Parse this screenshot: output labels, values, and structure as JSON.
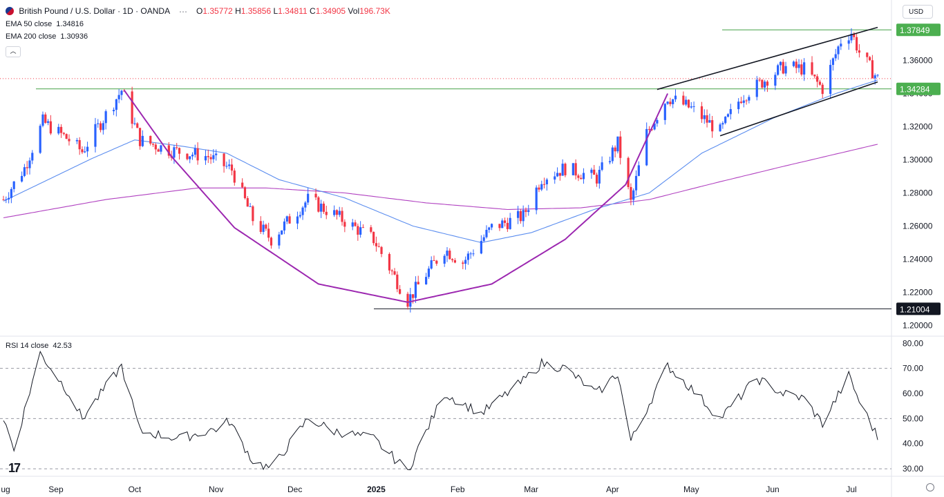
{
  "header": {
    "symbol_title": "British Pound / U.S. Dollar · 1D · OANDA",
    "o_label": "O",
    "o_value": "1.35772",
    "h_label": "H",
    "h_value": "1.35856",
    "l_label": "L",
    "l_value": "1.34811",
    "c_label": "C",
    "c_value": "1.34905",
    "vol_label": "Vol",
    "vol_value": "196.73K",
    "currency": "USD"
  },
  "indicators": {
    "ema50_name": "EMA 50 close",
    "ema50_value": "1.34816",
    "ema200_name": "EMA 200 close",
    "ema200_value": "1.30936",
    "rsi_name": "RSI 14 close",
    "rsi_value": "42.53"
  },
  "colors": {
    "up": "#2962ff",
    "down": "#f23645",
    "ema50": "#5b8def",
    "ema200": "#b040c0",
    "cup": "#9c27b0",
    "level_green": "#43a047",
    "level_black": "#131722"
  },
  "price_axis": {
    "ticks": [
      "1.36000",
      "1.34000",
      "1.32000",
      "1.30000",
      "1.28000",
      "1.26000",
      "1.24000",
      "1.22000",
      "1.20000"
    ],
    "tick_values": [
      1.36,
      1.34,
      1.32,
      1.3,
      1.28,
      1.26,
      1.24,
      1.22,
      1.2
    ],
    "range": [
      1.1935,
      1.3965
    ]
  },
  "levels": [
    {
      "label": "1.37849",
      "value": 1.37849,
      "style": "green"
    },
    {
      "label": "1.34284",
      "value": 1.34284,
      "style": "green"
    },
    {
      "label": "1.21004",
      "value": 1.21004,
      "style": "black"
    }
  ],
  "rsi_axis": {
    "ticks": [
      "80.00",
      "70.00",
      "60.00",
      "50.00",
      "40.00",
      "30.00"
    ],
    "tick_values": [
      80,
      70,
      60,
      50,
      40,
      30
    ],
    "range": [
      27,
      82
    ]
  },
  "time_axis": {
    "labels": [
      "ug",
      "Sep",
      "Oct",
      "Nov",
      "Dec",
      "2025",
      "Feb",
      "Mar",
      "Apr",
      "May",
      "Jun",
      "Jul"
    ],
    "bold_index": 5
  },
  "chart_data": {
    "type": "candlestick",
    "title": "British Pound / U.S. Dollar · 1D · OANDA",
    "x_start": "2024-08-12",
    "x_end": "2025-07-11",
    "ylim": [
      1.1935,
      1.3965
    ],
    "anchors": [
      {
        "date": "2024-08-12",
        "close": 1.276
      },
      {
        "date": "2024-08-20",
        "close": 1.295
      },
      {
        "date": "2024-08-27",
        "close": 1.323
      },
      {
        "date": "2024-09-06",
        "close": 1.312
      },
      {
        "date": "2024-09-11",
        "close": 1.305
      },
      {
        "date": "2024-09-26",
        "close": 1.342
      },
      {
        "date": "2024-10-03",
        "close": 1.312
      },
      {
        "date": "2024-10-14",
        "close": 1.306
      },
      {
        "date": "2024-10-29",
        "close": 1.302
      },
      {
        "date": "2024-11-07",
        "close": 1.294
      },
      {
        "date": "2024-11-15",
        "close": 1.264
      },
      {
        "date": "2024-11-22",
        "close": 1.252
      },
      {
        "date": "2024-12-06",
        "close": 1.276
      },
      {
        "date": "2024-12-16",
        "close": 1.267
      },
      {
        "date": "2024-12-31",
        "close": 1.252
      },
      {
        "date": "2025-01-13",
        "close": 1.215
      },
      {
        "date": "2025-01-20",
        "close": 1.231
      },
      {
        "date": "2025-01-27",
        "close": 1.246
      },
      {
        "date": "2025-02-03",
        "close": 1.238
      },
      {
        "date": "2025-02-14",
        "close": 1.259
      },
      {
        "date": "2025-02-26",
        "close": 1.266
      },
      {
        "date": "2025-03-05",
        "close": 1.289
      },
      {
        "date": "2025-03-14",
        "close": 1.295
      },
      {
        "date": "2025-03-26",
        "close": 1.289
      },
      {
        "date": "2025-04-03",
        "close": 1.31
      },
      {
        "date": "2025-04-08",
        "close": 1.274
      },
      {
        "date": "2025-04-14",
        "close": 1.316
      },
      {
        "date": "2025-04-22",
        "close": 1.338
      },
      {
        "date": "2025-05-01",
        "close": 1.331
      },
      {
        "date": "2025-05-12",
        "close": 1.317
      },
      {
        "date": "2025-05-20",
        "close": 1.338
      },
      {
        "date": "2025-05-28",
        "close": 1.347
      },
      {
        "date": "2025-06-05",
        "close": 1.356
      },
      {
        "date": "2025-06-13",
        "close": 1.355
      },
      {
        "date": "2025-06-20",
        "close": 1.343
      },
      {
        "date": "2025-06-27",
        "close": 1.372
      },
      {
        "date": "2025-07-01",
        "close": 1.377
      },
      {
        "date": "2025-07-04",
        "close": 1.365
      },
      {
        "date": "2025-07-11",
        "close": 1.349
      }
    ],
    "ema50": [
      {
        "date": "2024-08-12",
        "value": 1.275
      },
      {
        "date": "2024-09-15",
        "value": 1.301
      },
      {
        "date": "2024-10-01",
        "value": 1.312
      },
      {
        "date": "2024-10-20",
        "value": 1.308
      },
      {
        "date": "2024-11-05",
        "value": 1.304
      },
      {
        "date": "2024-11-25",
        "value": 1.288
      },
      {
        "date": "2024-12-20",
        "value": 1.277
      },
      {
        "date": "2025-01-15",
        "value": 1.26
      },
      {
        "date": "2025-02-10",
        "value": 1.25
      },
      {
        "date": "2025-03-01",
        "value": 1.256
      },
      {
        "date": "2025-03-25",
        "value": 1.27
      },
      {
        "date": "2025-04-15",
        "value": 1.28
      },
      {
        "date": "2025-05-05",
        "value": 1.304
      },
      {
        "date": "2025-06-01",
        "value": 1.325
      },
      {
        "date": "2025-06-25",
        "value": 1.34
      },
      {
        "date": "2025-07-11",
        "value": 1.3482
      }
    ],
    "ema200": [
      {
        "date": "2024-08-12",
        "value": 1.265
      },
      {
        "date": "2024-09-20",
        "value": 1.276
      },
      {
        "date": "2024-10-25",
        "value": 1.283
      },
      {
        "date": "2024-11-20",
        "value": 1.283
      },
      {
        "date": "2024-12-20",
        "value": 1.28
      },
      {
        "date": "2025-01-20",
        "value": 1.274
      },
      {
        "date": "2025-02-20",
        "value": 1.27
      },
      {
        "date": "2025-03-20",
        "value": 1.271
      },
      {
        "date": "2025-04-15",
        "value": 1.276
      },
      {
        "date": "2025-05-10",
        "value": 1.286
      },
      {
        "date": "2025-06-05",
        "value": 1.296
      },
      {
        "date": "2025-07-11",
        "value": 1.3094
      }
    ],
    "rsi_anchors": [
      {
        "date": "2024-08-12",
        "value": 50
      },
      {
        "date": "2024-08-16",
        "value": 38
      },
      {
        "date": "2024-08-26",
        "value": 76
      },
      {
        "date": "2024-09-06",
        "value": 60
      },
      {
        "date": "2024-09-11",
        "value": 50
      },
      {
        "date": "2024-09-26",
        "value": 71
      },
      {
        "date": "2024-10-03",
        "value": 45
      },
      {
        "date": "2024-10-18",
        "value": 42
      },
      {
        "date": "2024-11-01",
        "value": 46
      },
      {
        "date": "2024-11-06",
        "value": 49
      },
      {
        "date": "2024-11-15",
        "value": 33
      },
      {
        "date": "2024-11-22",
        "value": 30
      },
      {
        "date": "2024-12-06",
        "value": 50
      },
      {
        "date": "2024-12-16",
        "value": 45
      },
      {
        "date": "2024-12-31",
        "value": 42
      },
      {
        "date": "2025-01-13",
        "value": 29
      },
      {
        "date": "2025-01-20",
        "value": 45
      },
      {
        "date": "2025-01-27",
        "value": 60
      },
      {
        "date": "2025-02-10",
        "value": 52
      },
      {
        "date": "2025-02-26",
        "value": 65
      },
      {
        "date": "2025-03-05",
        "value": 72
      },
      {
        "date": "2025-03-14",
        "value": 70
      },
      {
        "date": "2025-03-26",
        "value": 60
      },
      {
        "date": "2025-04-03",
        "value": 68
      },
      {
        "date": "2025-04-08",
        "value": 41
      },
      {
        "date": "2025-04-22",
        "value": 71
      },
      {
        "date": "2025-05-01",
        "value": 62
      },
      {
        "date": "2025-05-12",
        "value": 50
      },
      {
        "date": "2025-05-26",
        "value": 66
      },
      {
        "date": "2025-06-05",
        "value": 60
      },
      {
        "date": "2025-06-13",
        "value": 58
      },
      {
        "date": "2025-06-20",
        "value": 48
      },
      {
        "date": "2025-06-30",
        "value": 67
      },
      {
        "date": "2025-07-04",
        "value": 57
      },
      {
        "date": "2025-07-11",
        "value": 42.53
      }
    ],
    "cup": [
      {
        "date": "2024-09-27",
        "value": 1.342
      },
      {
        "date": "2024-10-15",
        "value": 1.302
      },
      {
        "date": "2024-11-08",
        "value": 1.259
      },
      {
        "date": "2024-12-10",
        "value": 1.225
      },
      {
        "date": "2025-01-13",
        "value": 1.214
      },
      {
        "date": "2025-02-14",
        "value": 1.225
      },
      {
        "date": "2025-03-14",
        "value": 1.252
      },
      {
        "date": "2025-04-06",
        "value": 1.285
      },
      {
        "date": "2025-04-22",
        "value": 1.34
      }
    ],
    "channel_upper": [
      {
        "date": "2025-04-18",
        "value": 1.3425
      },
      {
        "date": "2025-07-11",
        "value": 1.38
      }
    ],
    "channel_lower": [
      {
        "date": "2025-05-12",
        "value": 1.3145
      },
      {
        "date": "2025-07-11",
        "value": 1.347
      }
    ],
    "last_price_line": 1.34905
  }
}
